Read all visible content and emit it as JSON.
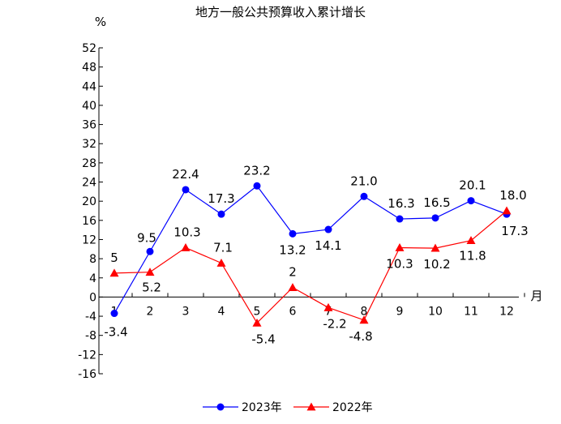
{
  "chart_data": {
    "type": "line",
    "title": "地方一般公共预算收入累计增长",
    "ylabel": "%",
    "xlabel": "月",
    "ylim": [
      -16,
      52
    ],
    "yticks": [
      52,
      48,
      44,
      40,
      36,
      32,
      28,
      24,
      20,
      16,
      12,
      8,
      4,
      0,
      -4,
      -8,
      -12,
      -16
    ],
    "categories": [
      "1",
      "2",
      "3",
      "4",
      "5",
      "6",
      "7",
      "8",
      "9",
      "10",
      "11",
      "12"
    ],
    "legend_position": "bottom",
    "series": [
      {
        "name": "2023年",
        "color": "#0000ff",
        "marker": "circle",
        "values": [
          -3.4,
          9.5,
          22.4,
          17.3,
          23.2,
          13.2,
          14.1,
          21.0,
          16.3,
          16.5,
          20.1,
          17.3
        ],
        "labels": [
          "-3.4",
          "9.5",
          "22.4",
          "17.3",
          "23.2",
          "13.2",
          "14.1",
          "21.0",
          "16.3",
          "16.5",
          "20.1",
          "17.3"
        ]
      },
      {
        "name": "2022年",
        "color": "#ff0000",
        "marker": "triangle",
        "values": [
          5,
          5.2,
          10.3,
          7.1,
          -5.4,
          2,
          -2.2,
          -4.8,
          10.3,
          10.2,
          11.8,
          18.0
        ],
        "labels": [
          "5",
          "5.2",
          "10.3",
          "7.1",
          "-5.4",
          "2",
          "-2.2",
          "-4.8",
          "10.3",
          "10.2",
          "11.8",
          "18.0"
        ]
      }
    ]
  }
}
